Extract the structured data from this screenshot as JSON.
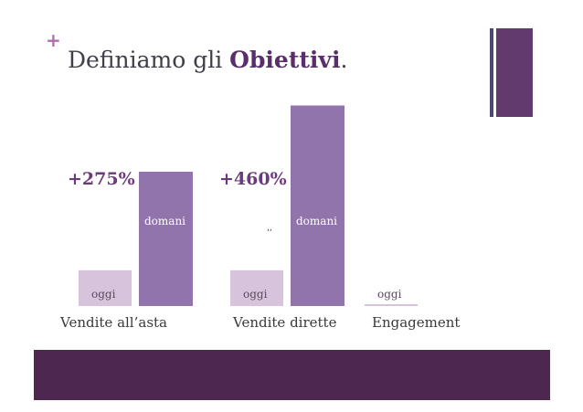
{
  "slide": {
    "plus": "+",
    "title_prefix": "Definiamo gli ",
    "title_bold": "Obiettivi",
    "title_suffix": "."
  },
  "chart_data": {
    "type": "bar",
    "categories": [
      "Vendite all’asta",
      "Vendite dirette",
      "Engagement"
    ],
    "series": [
      {
        "name": "oggi",
        "values": [
          1,
          1,
          0
        ]
      },
      {
        "name": "domani",
        "values": [
          3.75,
          5.6,
          null
        ]
      }
    ],
    "annotations": [
      "+275%",
      "+460%"
    ],
    "stray_mark": ",,",
    "colors": {
      "oggi": "#d7c4dc",
      "domani": "#9274ac",
      "pct": "#6a3a7a"
    }
  }
}
